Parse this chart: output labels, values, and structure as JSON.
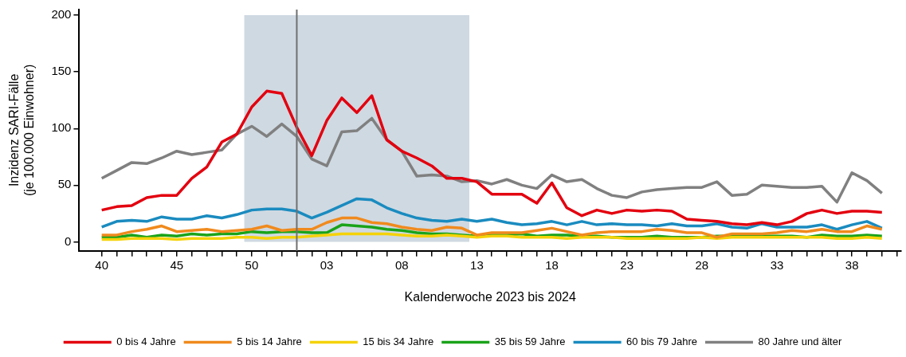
{
  "chart_data": {
    "type": "line",
    "xlabel": "Kalenderwoche 2023 bis 2024",
    "ylabel": "Inzidenz SARI-Fälle\n(je 100.000 Einwohner)",
    "x": [
      "2023-10-02",
      "2023-10-09",
      "2023-10-16",
      "2023-10-23",
      "2023-10-30",
      "2023-11-06",
      "2023-11-13",
      "2023-11-20",
      "2023-11-27",
      "2023-12-04",
      "2023-12-11",
      "2023-12-18",
      "2023-12-25",
      "2024-01-01",
      "2024-01-08",
      "2024-01-15",
      "2024-01-22",
      "2024-01-29",
      "2024-02-05",
      "2024-02-12",
      "2024-02-19",
      "2024-02-26",
      "2024-03-04",
      "2024-03-11",
      "2024-03-18",
      "2024-03-25",
      "2024-04-01",
      "2024-04-08",
      "2024-04-15",
      "2024-04-22",
      "2024-04-29",
      "2024-05-06",
      "2024-05-13",
      "2024-05-20",
      "2024-05-27",
      "2024-06-03",
      "2024-06-10",
      "2024-06-17",
      "2024-06-24",
      "2024-07-01",
      "2024-07-08",
      "2024-07-15",
      "2024-07-22",
      "2024-07-29",
      "2024-08-05",
      "2024-08-12",
      "2024-08-19",
      "2024-08-26",
      "2024-09-02",
      "2024-09-09",
      "2024-09-16",
      "2024-09-23",
      "2024-09-30"
    ],
    "series": [
      {
        "name": "0 bis 4 Jahre",
        "color": "#e3000f",
        "values": [
          28,
          31,
          32,
          39,
          41,
          41,
          56,
          66,
          88,
          95,
          119,
          133,
          131,
          101,
          76,
          107,
          127,
          114,
          129,
          90,
          80,
          74,
          67,
          56,
          56,
          53,
          42,
          42,
          42,
          34,
          52,
          30,
          23,
          28,
          25,
          28,
          27,
          28,
          27,
          20,
          19,
          18,
          16,
          15,
          17,
          15,
          18,
          25,
          28,
          25,
          27,
          27,
          26
        ]
      },
      {
        "name": "5 bis 14 Jahre",
        "color": "#f08a1d",
        "values": [
          6,
          6,
          9,
          11,
          14,
          9,
          10,
          11,
          9,
          10,
          11,
          14,
          10,
          11,
          11,
          17,
          21,
          21,
          17,
          16,
          13,
          11,
          10,
          13,
          12,
          6,
          8,
          8,
          8,
          10,
          12,
          9,
          6,
          8,
          9,
          9,
          9,
          11,
          10,
          8,
          8,
          4,
          7,
          7,
          7,
          8,
          10,
          9,
          11,
          9,
          9,
          14,
          11
        ]
      },
      {
        "name": "15 bis 34 Jahre",
        "color": "#f5d20a",
        "values": [
          2,
          2,
          3,
          3,
          3,
          2,
          3,
          3,
          3,
          4,
          4,
          3,
          4,
          4,
          5,
          6,
          7,
          7,
          7,
          7,
          6,
          5,
          5,
          6,
          5,
          4,
          5,
          5,
          4,
          4,
          4,
          3,
          4,
          4,
          4,
          3,
          3,
          3,
          3,
          3,
          4,
          3,
          4,
          4,
          4,
          4,
          4,
          4,
          4,
          3,
          3,
          4,
          3
        ]
      },
      {
        "name": "35 bis 59 Jahre",
        "color": "#1aa31a",
        "values": [
          4,
          4,
          6,
          4,
          6,
          5,
          7,
          6,
          7,
          7,
          9,
          8,
          9,
          9,
          8,
          8,
          15,
          14,
          13,
          11,
          10,
          8,
          7,
          7,
          6,
          5,
          6,
          6,
          7,
          5,
          6,
          6,
          5,
          5,
          4,
          4,
          4,
          5,
          4,
          4,
          4,
          5,
          5,
          5,
          5,
          5,
          5,
          4,
          6,
          5,
          5,
          6,
          5
        ]
      },
      {
        "name": "60 bis 79 Jahre",
        "color": "#1a8bbf",
        "values": [
          13,
          18,
          19,
          18,
          22,
          20,
          20,
          23,
          21,
          24,
          28,
          29,
          29,
          27,
          21,
          26,
          32,
          38,
          37,
          30,
          25,
          21,
          19,
          18,
          20,
          18,
          20,
          17,
          15,
          16,
          18,
          15,
          18,
          15,
          16,
          15,
          15,
          14,
          16,
          14,
          14,
          16,
          13,
          12,
          16,
          13,
          13,
          13,
          15,
          11,
          15,
          18,
          12
        ]
      },
      {
        "name": "80 Jahre und älter",
        "color": "#808080",
        "values": [
          56,
          63,
          70,
          69,
          74,
          80,
          77,
          79,
          81,
          95,
          102,
          93,
          104,
          93,
          73,
          67,
          97,
          98,
          109,
          90,
          80,
          58,
          59,
          58,
          53,
          54,
          51,
          55,
          50,
          47,
          59,
          53,
          55,
          47,
          41,
          39,
          44,
          46,
          47,
          48,
          48,
          53,
          41,
          42,
          50,
          49,
          48,
          48,
          49,
          35,
          61,
          54,
          43
        ]
      }
    ],
    "xlim": [
      "2023-09-21T12:00",
      "2024-10-09"
    ],
    "xticks": [
      {
        "value": "2023-10-02",
        "label": "40"
      },
      {
        "value": "2023-10-09",
        "label": null
      },
      {
        "value": "2023-10-16",
        "label": null
      },
      {
        "value": "2023-10-23",
        "label": null
      },
      {
        "value": "2023-10-30",
        "label": null
      },
      {
        "value": "2023-11-06",
        "label": "45"
      },
      {
        "value": "2023-11-13",
        "label": null
      },
      {
        "value": "2023-11-20",
        "label": null
      },
      {
        "value": "2023-11-27",
        "label": null
      },
      {
        "value": "2023-12-04",
        "label": null
      },
      {
        "value": "2023-12-11",
        "label": "50"
      },
      {
        "value": "2023-12-18",
        "label": null
      },
      {
        "value": "2023-12-25",
        "label": null
      },
      {
        "value": "2024-01-01",
        "label": null
      },
      {
        "value": "2024-01-08",
        "label": null
      },
      {
        "value": "2024-01-15",
        "label": "03"
      },
      {
        "value": "2024-01-22",
        "label": null
      },
      {
        "value": "2024-01-29",
        "label": null
      },
      {
        "value": "2024-02-05",
        "label": null
      },
      {
        "value": "2024-02-12",
        "label": null
      },
      {
        "value": "2024-02-19",
        "label": "08"
      },
      {
        "value": "2024-02-26",
        "label": null
      },
      {
        "value": "2024-03-04",
        "label": null
      },
      {
        "value": "2024-03-11",
        "label": null
      },
      {
        "value": "2024-03-18",
        "label": null
      },
      {
        "value": "2024-03-25",
        "label": "13"
      },
      {
        "value": "2024-04-01",
        "label": null
      },
      {
        "value": "2024-04-08",
        "label": null
      },
      {
        "value": "2024-04-15",
        "label": null
      },
      {
        "value": "2024-04-22",
        "label": null
      },
      {
        "value": "2024-04-29",
        "label": "18"
      },
      {
        "value": "2024-05-06",
        "label": null
      },
      {
        "value": "2024-05-13",
        "label": null
      },
      {
        "value": "2024-05-20",
        "label": null
      },
      {
        "value": "2024-05-27",
        "label": null
      },
      {
        "value": "2024-06-03",
        "label": "23"
      },
      {
        "value": "2024-06-10",
        "label": null
      },
      {
        "value": "2024-06-17",
        "label": null
      },
      {
        "value": "2024-06-24",
        "label": null
      },
      {
        "value": "2024-07-01",
        "label": null
      },
      {
        "value": "2024-07-08",
        "label": "28"
      },
      {
        "value": "2024-07-15",
        "label": null
      },
      {
        "value": "2024-07-22",
        "label": null
      },
      {
        "value": "2024-07-29",
        "label": null
      },
      {
        "value": "2024-08-05",
        "label": null
      },
      {
        "value": "2024-08-12",
        "label": "33"
      },
      {
        "value": "2024-08-19",
        "label": null
      },
      {
        "value": "2024-08-26",
        "label": null
      },
      {
        "value": "2024-09-02",
        "label": null
      },
      {
        "value": "2024-09-09",
        "label": null
      },
      {
        "value": "2024-09-16",
        "label": "38"
      },
      {
        "value": "2024-09-23",
        "label": null
      },
      {
        "value": "2024-09-30",
        "label": null
      },
      {
        "value": "2024-10-07",
        "label": null
      }
    ],
    "ylim": [
      -8,
      205
    ],
    "yticks": [
      0,
      50,
      100,
      150,
      200
    ],
    "bands": [
      {
        "axis": "x",
        "from": "2023-12-07T12:00",
        "to": "2024-03-21T12:00",
        "color": "#cfd9e2"
      }
    ],
    "ref_lines": [
      {
        "axis": "x",
        "value": "2024-01-01",
        "color": "#707070"
      }
    ],
    "grid": false,
    "legend": "bottom",
    "marker": "none",
    "line_style": "solid"
  }
}
